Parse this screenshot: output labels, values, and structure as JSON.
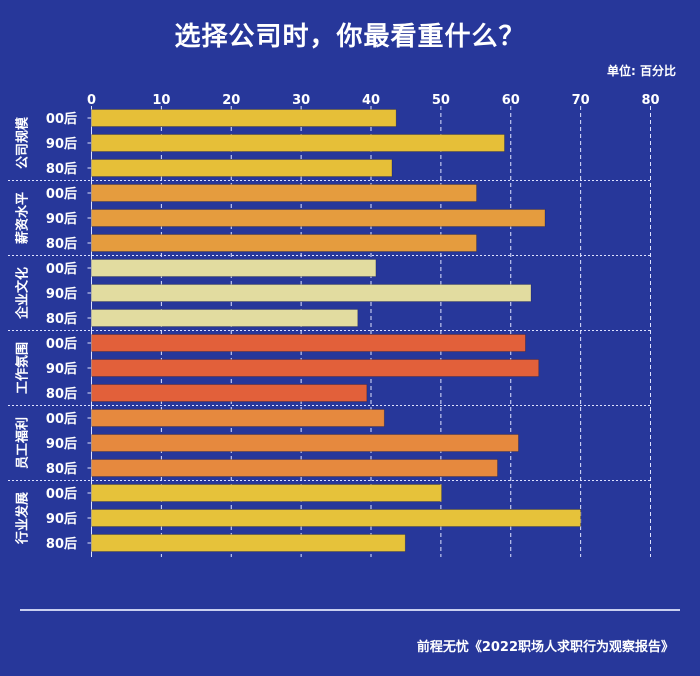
{
  "title": "选择公司时，你最看重什么？",
  "unit": "单位: 百分比",
  "source": "前程无忧《2022职场人求职行为观察报告》",
  "chart_data": {
    "type": "bar",
    "orientation": "horizontal",
    "title": "选择公司时，你最看重什么？",
    "xlim": [
      0,
      80
    ],
    "xticks": [
      "0",
      "10",
      "20",
      "30",
      "40",
      "50",
      "60",
      "70",
      "80"
    ],
    "grid": true,
    "generations": [
      "00后",
      "90后",
      "80后"
    ],
    "groups": [
      {
        "name": "公司规模",
        "color": "#e6bf38",
        "values": [
          43.6,
          59.1,
          43.0
        ]
      },
      {
        "name": "薪资水平",
        "color": "#e59c3e",
        "values": [
          55.1,
          64.9,
          55.1
        ]
      },
      {
        "name": "企业文化",
        "color": "#e2dca0",
        "values": [
          40.7,
          62.9,
          38.1
        ]
      },
      {
        "name": "工作氛围",
        "color": "#e2603a",
        "values": [
          62.1,
          64.0,
          39.4
        ]
      },
      {
        "name": "员工福利",
        "color": "#e6893e",
        "values": [
          41.9,
          61.1,
          58.1
        ]
      },
      {
        "name": "行业发展",
        "color": "#e6c23a",
        "values": [
          50.1,
          70.0,
          44.9
        ]
      }
    ]
  }
}
